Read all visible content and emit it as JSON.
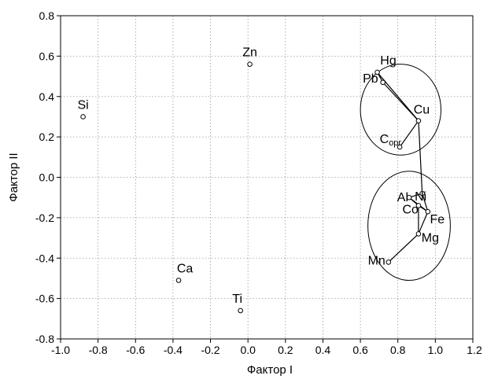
{
  "chart_data": {
    "type": "scatter",
    "xlabel": "Фактор I",
    "ylabel": "Фактор II",
    "xlim": [
      -1.0,
      1.2
    ],
    "ylim": [
      -0.8,
      0.8
    ],
    "grid": true,
    "x_ticks": [
      "-1.0",
      "-0.8",
      "-0.6",
      "-0.4",
      "-0.2",
      "0.0",
      "0.2",
      "0.4",
      "0.6",
      "0.8",
      "1.0",
      "1.2"
    ],
    "x_tick_values": [
      -1.0,
      -0.8,
      -0.6,
      -0.4,
      -0.2,
      0.0,
      0.2,
      0.4,
      0.6,
      0.8,
      1.0,
      1.2
    ],
    "y_ticks": [
      "0.8",
      "0.6",
      "0.4",
      "0.2",
      "0.0",
      "-0.2",
      "-0.4",
      "-0.6",
      "-0.8"
    ],
    "y_tick_values": [
      0.8,
      0.6,
      0.4,
      0.2,
      0.0,
      -0.2,
      -0.4,
      -0.6,
      -0.8
    ],
    "points": [
      {
        "label": "Si",
        "x": -0.88,
        "y": 0.3
      },
      {
        "label": "Zn",
        "x": 0.01,
        "y": 0.56
      },
      {
        "label": "Ca",
        "x": -0.37,
        "y": -0.51
      },
      {
        "label": "Ti",
        "x": -0.04,
        "y": -0.66
      },
      {
        "label": "Hg",
        "x": 0.69,
        "y": 0.52
      },
      {
        "label": "Pb",
        "x": 0.72,
        "y": 0.47
      },
      {
        "label": "Cu",
        "x": 0.91,
        "y": 0.28
      },
      {
        "label": "Copr",
        "label_main": "C",
        "label_sub": "opr",
        "x": 0.81,
        "y": 0.15
      },
      {
        "label": "Ni",
        "x": 0.93,
        "y": -0.08
      },
      {
        "label": "Al",
        "x": 0.86,
        "y": -0.1
      },
      {
        "label": "Co",
        "x": 0.91,
        "y": -0.14
      },
      {
        "label": "Fe",
        "x": 0.96,
        "y": -0.17
      },
      {
        "label": "Mg",
        "x": 0.91,
        "y": -0.28
      },
      {
        "label": "Mn",
        "x": 0.75,
        "y": -0.42
      }
    ],
    "links": [
      [
        "Hg",
        "Pb"
      ],
      [
        "Hg",
        "Cu"
      ],
      [
        "Pb",
        "Cu"
      ],
      [
        "Cu",
        "Copr"
      ],
      [
        "Cu",
        "Ni"
      ],
      [
        "Ni",
        "Al"
      ],
      [
        "Ni",
        "Fe"
      ],
      [
        "Al",
        "Co"
      ],
      [
        "Co",
        "Fe"
      ],
      [
        "Al",
        "Fe"
      ],
      [
        "Co",
        "Mg"
      ],
      [
        "Fe",
        "Mg"
      ],
      [
        "Mg",
        "Mn"
      ]
    ],
    "clusters": [
      {
        "cx": 0.815,
        "cy": 0.335,
        "rx": 0.215,
        "ry": 0.225
      },
      {
        "cx": 0.86,
        "cy": -0.24,
        "rx": 0.22,
        "ry": 0.27
      }
    ]
  }
}
